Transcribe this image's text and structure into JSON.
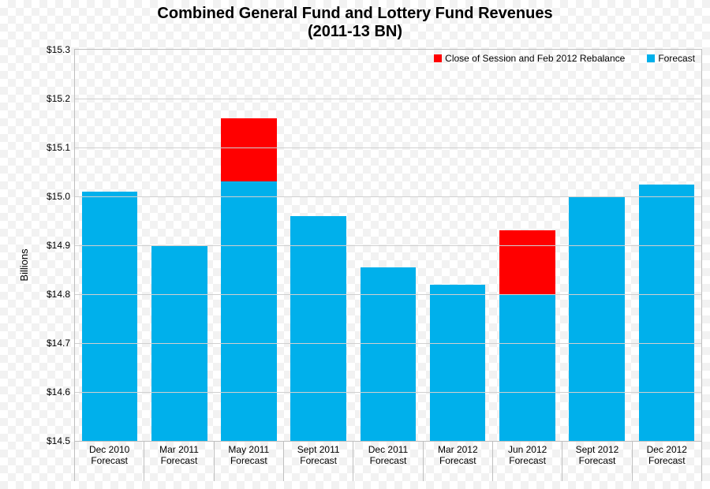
{
  "chart": {
    "type": "stacked-bar",
    "title_line1": "Combined General Fund and Lottery Fund Revenues",
    "title_line2": "(2011-13 BN)",
    "title_fontsize": 20,
    "title_fontweight": "bold",
    "y_axis_title": "Billions",
    "y_axis_title_fontsize": 13,
    "ylim": [
      14.5,
      15.3
    ],
    "ytick_step": 0.1,
    "ytick_prefix": "$",
    "ytick_decimals": 1,
    "tick_fontsize": 12,
    "background_color": "#ffffff",
    "grid_color": "#d0d0d0",
    "border_color": "#bfbfbf",
    "bar_width_ratio": 0.8,
    "series": [
      {
        "key": "forecast",
        "label": "Forecast",
        "color": "#00b0eb"
      },
      {
        "key": "rebalance",
        "label": "Close of Session and Feb 2012 Rebalance",
        "color": "#ff0000"
      }
    ],
    "categories": [
      {
        "line1": "Dec 2010",
        "line2": "Forecast",
        "forecast": 15.01,
        "rebalance": 0
      },
      {
        "line1": "Mar 2011",
        "line2": "Forecast",
        "forecast": 14.9,
        "rebalance": 0
      },
      {
        "line1": "May 2011",
        "line2": "Forecast",
        "forecast": 15.03,
        "rebalance": 0.13
      },
      {
        "line1": "Sept 2011",
        "line2": "Forecast",
        "forecast": 14.96,
        "rebalance": 0
      },
      {
        "line1": "Dec 2011",
        "line2": "Forecast",
        "forecast": 14.855,
        "rebalance": 0
      },
      {
        "line1": "Mar 2012",
        "line2": "Forecast",
        "forecast": 14.82,
        "rebalance": 0
      },
      {
        "line1": "Jun 2012",
        "line2": "Forecast",
        "forecast": 14.8,
        "rebalance": 0.13
      },
      {
        "line1": "Sept 2012",
        "line2": "Forecast",
        "forecast": 15.0,
        "rebalance": 0
      },
      {
        "line1": "Dec 2012",
        "line2": "Forecast",
        "forecast": 15.025,
        "rebalance": 0
      }
    ]
  }
}
